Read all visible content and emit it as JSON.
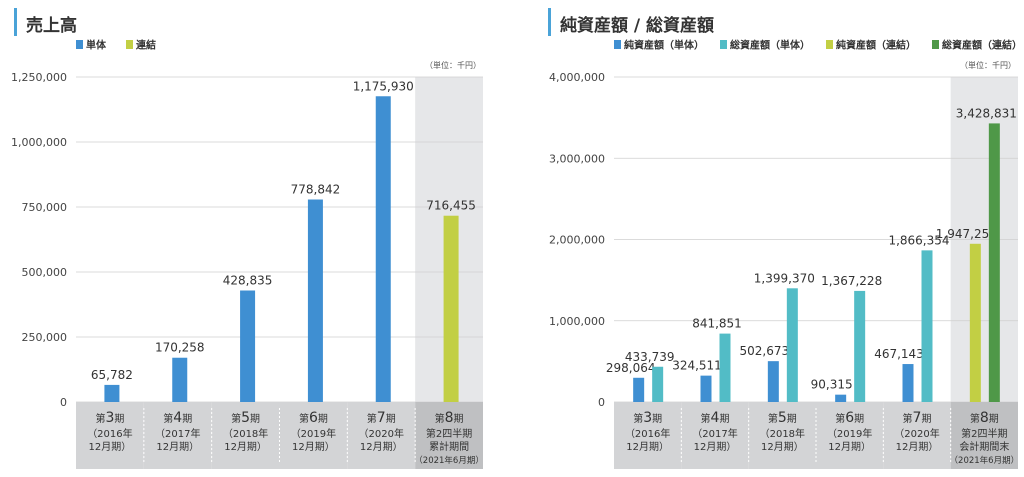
{
  "chart_data": [
    {
      "type": "bar",
      "title": "売上高",
      "unit": "（単位：千円）",
      "legend": [
        {
          "name": "単体",
          "color": "#3f8fd2"
        },
        {
          "name": "連結",
          "color": "#c2cf44"
        }
      ],
      "ylim": [
        0,
        1250000
      ],
      "yticks": [
        "0",
        "250,000",
        "500,000",
        "750,000",
        "1,000,000",
        "1,250,000"
      ],
      "ytick_values": [
        0,
        250000,
        500000,
        750000,
        1000000,
        1250000
      ],
      "categories": [
        {
          "prefix": "第",
          "num": "3",
          "suffix": "期",
          "sub1": "（2016年",
          "sub2": "12月期）",
          "highlight": false
        },
        {
          "prefix": "第",
          "num": "4",
          "suffix": "期",
          "sub1": "（2017年",
          "sub2": "12月期）",
          "highlight": false
        },
        {
          "prefix": "第",
          "num": "5",
          "suffix": "期",
          "sub1": "（2018年",
          "sub2": "12月期）",
          "highlight": false
        },
        {
          "prefix": "第",
          "num": "6",
          "suffix": "期",
          "sub1": "（2019年",
          "sub2": "12月期）",
          "highlight": false
        },
        {
          "prefix": "第",
          "num": "7",
          "suffix": "期",
          "sub1": "（2020年",
          "sub2": "12月期）",
          "highlight": false
        },
        {
          "prefix": "第",
          "num": "8",
          "suffix": "期",
          "sub1": "第2四半期",
          "sub2": "累計期間",
          "sub3": "（2021年6月期）",
          "highlight": true
        }
      ],
      "series": [
        {
          "name": "単体",
          "color": "#3f8fd2",
          "values": [
            65782,
            170258,
            428835,
            778842,
            1175930,
            null
          ],
          "labels": [
            "65,782",
            "170,258",
            "428,835",
            "778,842",
            "1,175,930",
            null
          ]
        },
        {
          "name": "連結",
          "color": "#c2cf44",
          "values": [
            null,
            null,
            null,
            null,
            null,
            716455
          ],
          "labels": [
            null,
            null,
            null,
            null,
            null,
            "716,455"
          ]
        }
      ]
    },
    {
      "type": "bar",
      "title": "純資産額 / 総資産額",
      "unit": "（単位：千円）",
      "legend": [
        {
          "name": "純資産額（単体）",
          "color": "#3f8fd2"
        },
        {
          "name": "総資産額（単体）",
          "color": "#52bcc6"
        },
        {
          "name": "純資産額（連結）",
          "color": "#c2cf44"
        },
        {
          "name": "総資産額（連結）",
          "color": "#4f9848"
        }
      ],
      "ylim": [
        0,
        4000000
      ],
      "yticks": [
        "0",
        "1,000,000",
        "2,000,000",
        "3,000,000",
        "4,000,000"
      ],
      "ytick_values": [
        0,
        1000000,
        2000000,
        3000000,
        4000000
      ],
      "categories": [
        {
          "prefix": "第",
          "num": "3",
          "suffix": "期",
          "sub1": "（2016年",
          "sub2": "12月期）",
          "highlight": false
        },
        {
          "prefix": "第",
          "num": "4",
          "suffix": "期",
          "sub1": "（2017年",
          "sub2": "12月期）",
          "highlight": false
        },
        {
          "prefix": "第",
          "num": "5",
          "suffix": "期",
          "sub1": "（2018年",
          "sub2": "12月期）",
          "highlight": false
        },
        {
          "prefix": "第",
          "num": "6",
          "suffix": "期",
          "sub1": "（2019年",
          "sub2": "12月期）",
          "highlight": false
        },
        {
          "prefix": "第",
          "num": "7",
          "suffix": "期",
          "sub1": "（2020年",
          "sub2": "12月期）",
          "highlight": false
        },
        {
          "prefix": "第",
          "num": "8",
          "suffix": "期",
          "sub1": "第2四半期",
          "sub2": "会計期間末",
          "sub3": "（2021年6月期）",
          "highlight": true
        }
      ],
      "groups": [
        [
          {
            "color": "#3f8fd2",
            "value": 298064,
            "label": "298,064"
          },
          {
            "color": "#52bcc6",
            "value": 433739,
            "label": "433,739"
          }
        ],
        [
          {
            "color": "#3f8fd2",
            "value": 324511,
            "label": "324,511"
          },
          {
            "color": "#52bcc6",
            "value": 841851,
            "label": "841,851"
          }
        ],
        [
          {
            "color": "#3f8fd2",
            "value": 502673,
            "label": "502,673"
          },
          {
            "color": "#52bcc6",
            "value": 1399370,
            "label": "1,399,370"
          }
        ],
        [
          {
            "color": "#3f8fd2",
            "value": 90315,
            "label": "90,315"
          },
          {
            "color": "#52bcc6",
            "value": 1367228,
            "label": "1,367,228"
          }
        ],
        [
          {
            "color": "#3f8fd2",
            "value": 467143,
            "label": "467,143"
          },
          {
            "color": "#52bcc6",
            "value": 1866354,
            "label": "1,866,354"
          }
        ],
        [
          {
            "color": "#c2cf44",
            "value": 1947259,
            "label": "1,947,259"
          },
          {
            "color": "#4f9848",
            "value": 3428831,
            "label": "3,428,831"
          }
        ]
      ]
    }
  ],
  "colors": {
    "accent_bar": "#4aa3d8",
    "highlight_bg": "#e6e7e9",
    "axis_band": "#d3d4d6",
    "axis_band_highlight": "#bfc0c2",
    "gridline": "#cfcfcf"
  }
}
